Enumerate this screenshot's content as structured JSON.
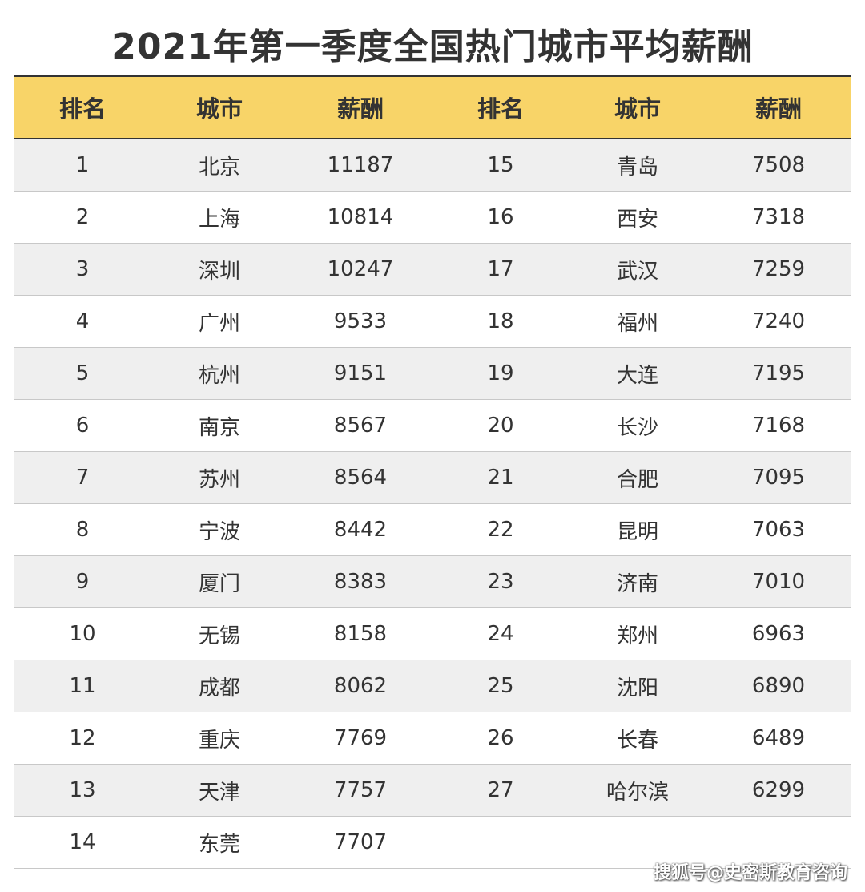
{
  "title": "2021年第一季度全国热门城市平均薪酬",
  "headers": {
    "rank": "排名",
    "city": "城市",
    "salary": "薪酬"
  },
  "rows": [
    {
      "rank1": "1",
      "city1": "北京",
      "salary1": "11187",
      "rank2": "15",
      "city2": "青岛",
      "salary2": "7508"
    },
    {
      "rank1": "2",
      "city1": "上海",
      "salary1": "10814",
      "rank2": "16",
      "city2": "西安",
      "salary2": "7318"
    },
    {
      "rank1": "3",
      "city1": "深圳",
      "salary1": "10247",
      "rank2": "17",
      "city2": "武汉",
      "salary2": "7259"
    },
    {
      "rank1": "4",
      "city1": "广州",
      "salary1": "9533",
      "rank2": "18",
      "city2": "福州",
      "salary2": "7240"
    },
    {
      "rank1": "5",
      "city1": "杭州",
      "salary1": "9151",
      "rank2": "19",
      "city2": "大连",
      "salary2": "7195"
    },
    {
      "rank1": "6",
      "city1": "南京",
      "salary1": "8567",
      "rank2": "20",
      "city2": "长沙",
      "salary2": "7168"
    },
    {
      "rank1": "7",
      "city1": "苏州",
      "salary1": "8564",
      "rank2": "21",
      "city2": "合肥",
      "salary2": "7095"
    },
    {
      "rank1": "8",
      "city1": "宁波",
      "salary1": "8442",
      "rank2": "22",
      "city2": "昆明",
      "salary2": "7063"
    },
    {
      "rank1": "9",
      "city1": "厦门",
      "salary1": "8383",
      "rank2": "23",
      "city2": "济南",
      "salary2": "7010"
    },
    {
      "rank1": "10",
      "city1": "无锡",
      "salary1": "8158",
      "rank2": "24",
      "city2": "郑州",
      "salary2": "6963"
    },
    {
      "rank1": "11",
      "city1": "成都",
      "salary1": "8062",
      "rank2": "25",
      "city2": "沈阳",
      "salary2": "6890"
    },
    {
      "rank1": "12",
      "city1": "重庆",
      "salary1": "7769",
      "rank2": "26",
      "city2": "长春",
      "salary2": "6489"
    },
    {
      "rank1": "13",
      "city1": "天津",
      "salary1": "7757",
      "rank2": "27",
      "city2": "哈尔滨",
      "salary2": "6299"
    },
    {
      "rank1": "14",
      "city1": "东莞",
      "salary1": "7707",
      "rank2": "",
      "city2": "",
      "salary2": ""
    }
  ],
  "watermark": "搜狐号@史密斯教育咨询",
  "colors": {
    "header_bg": "#f8d468",
    "alt_row_bg": "#efefef",
    "text": "#333333"
  }
}
